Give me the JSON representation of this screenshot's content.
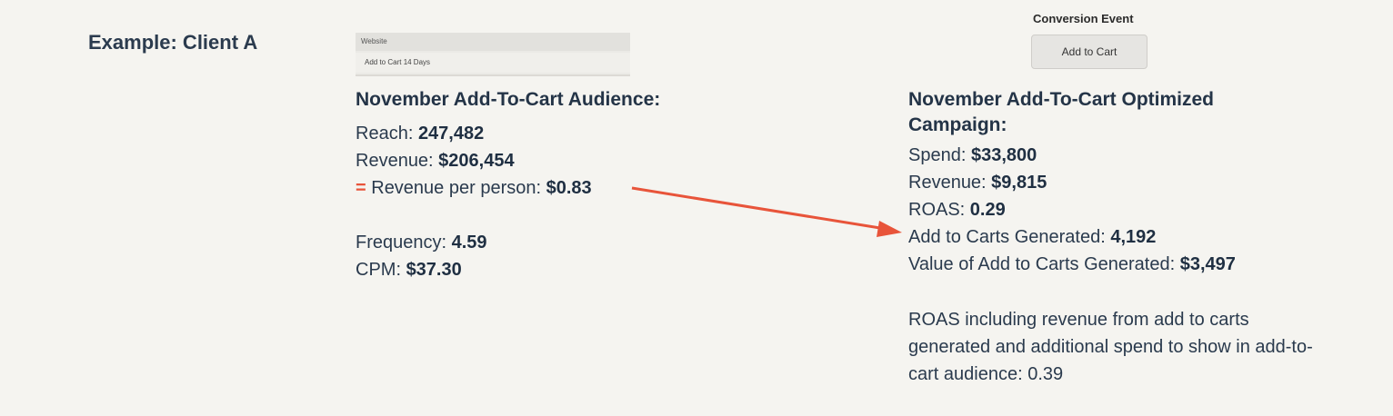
{
  "example_title": "Example: Client A",
  "audience_screenshot": {
    "header": "Website",
    "row": "Add to Cart 14 Days"
  },
  "conversion_event": {
    "label": "Conversion Event",
    "button": "Add to Cart"
  },
  "left": {
    "heading": "November Add-To-Cart Audience:",
    "reach_label": "Reach: ",
    "reach_value": "247,482",
    "revenue_label": "Revenue: ",
    "revenue_value": "$206,454",
    "equals_sign": "=",
    "rpp_label": " Revenue per person: ",
    "rpp_value": "$0.83",
    "frequency_label": "Frequency: ",
    "frequency_value": "4.59",
    "cpm_label": "CPM: ",
    "cpm_value": "$37.30"
  },
  "right": {
    "heading_line1": "November Add-To-Cart Optimized",
    "heading_line2": "Campaign:",
    "spend_label": "Spend: ",
    "spend_value": "$33,800",
    "revenue_label": "Revenue: ",
    "revenue_value": "$9,815",
    "roas_label": "ROAS: ",
    "roas_value": "0.29",
    "atc_label": "Add to Carts Generated: ",
    "atc_value": "4,192",
    "value_label": "Value of Add to Carts Generated: ",
    "value_value": "$3,497",
    "note": "ROAS including revenue from add to carts generated and additional spend to show in add-to-cart audience: 0.39"
  },
  "colors": {
    "background": "#f5f4f0",
    "text": "#243447",
    "accent_arrow": "#e8543a"
  }
}
